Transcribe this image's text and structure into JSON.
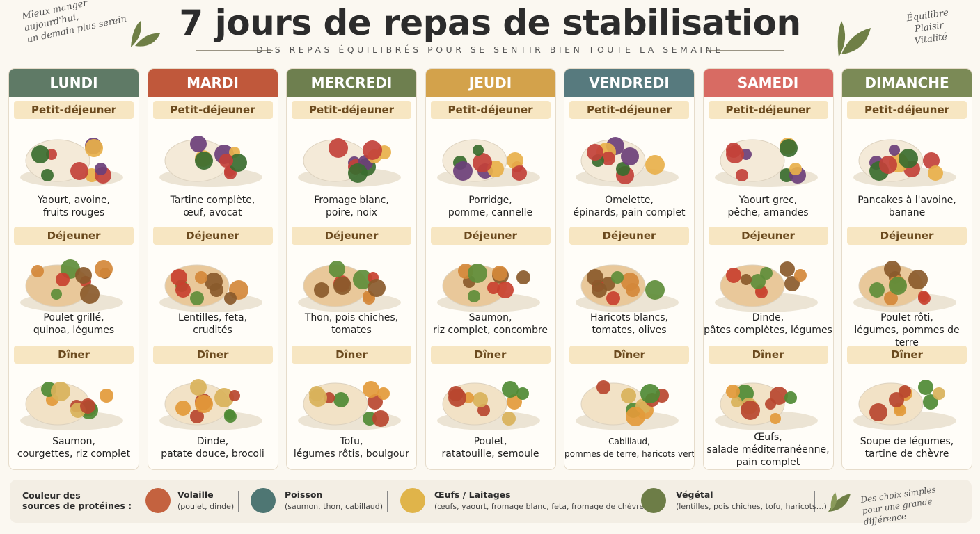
{
  "header": {
    "title": "7 jours de repas de stabilisation",
    "subtitle": "DES REPAS ÉQUILIBRÉS POUR SE SENTIR BIEN TOUTE LA SEMAINE",
    "left_note": [
      "Mieux manger",
      "aujourd'hui,",
      "un demain plus serein"
    ],
    "right_note": [
      "Équilibre",
      "Plaisir",
      "Vitalité"
    ]
  },
  "days": [
    {
      "name": "LUNDI",
      "color": "#5f7a66",
      "meals": [
        {
          "label": "Petit-déjeuner",
          "description": [
            "Yaourt, avoine,",
            "fruits rouges"
          ]
        },
        {
          "label": "Déjeuner",
          "description": [
            "Poulet grillé,",
            "quinoa, légumes"
          ]
        },
        {
          "label": "Dîner",
          "description": [
            "Saumon,",
            "courgettes, riz complet"
          ]
        }
      ]
    },
    {
      "name": "MARDI",
      "color": "#c0583b",
      "meals": [
        {
          "label": "Petit-déjeuner",
          "description": [
            "Tartine complète,",
            "œuf, avocat"
          ]
        },
        {
          "label": "Déjeuner",
          "description": [
            "Lentilles, feta,",
            "crudités"
          ]
        },
        {
          "label": "Dîner",
          "description": [
            "Dinde,",
            "patate douce, brocoli"
          ]
        }
      ]
    },
    {
      "name": "MERCREDI",
      "color": "#6e7f4f",
      "meals": [
        {
          "label": "Petit-déjeuner",
          "description": [
            "Fromage blanc,",
            "poire, noix"
          ]
        },
        {
          "label": "Déjeuner",
          "description": [
            "Thon, pois chiches,",
            "tomates"
          ]
        },
        {
          "label": "Dîner",
          "description": [
            "Tofu,",
            "légumes rôtis, boulgour"
          ]
        }
      ]
    },
    {
      "name": "JEUDI",
      "color": "#d3a24b",
      "meals": [
        {
          "label": "Petit-déjeuner",
          "description": [
            "Porridge,",
            "pomme, cannelle"
          ]
        },
        {
          "label": "Déjeuner",
          "description": [
            "Saumon,",
            "riz complet, concombre"
          ]
        },
        {
          "label": "Dîner",
          "description": [
            "Poulet,",
            "ratatouille, semoule"
          ]
        }
      ]
    },
    {
      "name": "VENDREDI",
      "color": "#577a7e",
      "meals": [
        {
          "label": "Petit-déjeuner",
          "description": [
            "Omelette,",
            "épinards, pain complet"
          ]
        },
        {
          "label": "Déjeuner",
          "description": [
            "Haricots blancs,",
            "tomates, olives"
          ]
        },
        {
          "label": "Dîner",
          "description": [
            "Cabillaud,",
            "pommes de terre, haricots verts"
          ]
        }
      ]
    },
    {
      "name": "SAMEDI",
      "color": "#d86b63",
      "meals": [
        {
          "label": "Petit-déjeuner",
          "description": [
            "Yaourt grec,",
            "pêche, amandes"
          ]
        },
        {
          "label": "Déjeuner",
          "description": [
            "Dinde,",
            "pâtes complètes, légumes"
          ]
        },
        {
          "label": "Dîner",
          "description": [
            "Œufs,",
            "salade méditerranéenne,",
            "pain complet"
          ]
        }
      ]
    },
    {
      "name": "DIMANCHE",
      "color": "#7b8a56",
      "meals": [
        {
          "label": "Petit-déjeuner",
          "description": [
            "Pancakes à l'avoine,",
            "banane"
          ]
        },
        {
          "label": "Déjeuner",
          "description": [
            "Poulet rôti,",
            "légumes, pommes de terre"
          ]
        },
        {
          "label": "Dîner",
          "description": [
            "Soupe de légumes,",
            "tartine de chèvre"
          ]
        }
      ]
    }
  ],
  "legend": {
    "title": [
      "Couleur des",
      "sources de protéines :"
    ],
    "items": [
      {
        "label": "Volaille",
        "detail": "(poulet, dinde)",
        "color": "#c4623f"
      },
      {
        "label": "Poisson",
        "detail": "(saumon, thon, cabillaud)",
        "color": "#4e7673"
      },
      {
        "label": "Œufs / Laitages",
        "detail": "(œufs, yaourt, fromage blanc, feta, fromage de chèvre)",
        "color": "#e0b44a"
      },
      {
        "label": "Végétal",
        "detail": "(lentilles, pois chiches, tofu, haricots…)",
        "color": "#6d7d47"
      }
    ],
    "note": [
      "Des choix simples",
      "pour une grande différence"
    ]
  }
}
